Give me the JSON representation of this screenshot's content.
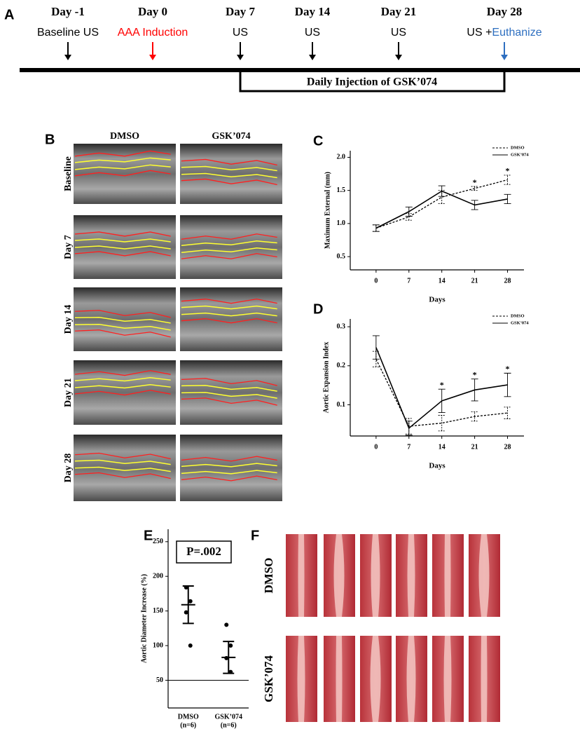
{
  "timeline": {
    "label": "A",
    "events": [
      {
        "day": "Day -1",
        "arrow_color": "#000000",
        "text": [
          {
            "t": "Baseline US",
            "color": "#000000"
          }
        ]
      },
      {
        "day": "Day 0",
        "arrow_color": "#ff0000",
        "text": [
          {
            "t": "AAA Induction",
            "color": "#ff0000"
          }
        ]
      },
      {
        "day": "Day 7",
        "arrow_color": "#000000",
        "text": [
          {
            "t": "US",
            "color": "#000000"
          }
        ]
      },
      {
        "day": "Day 14",
        "arrow_color": "#000000",
        "text": [
          {
            "t": "US",
            "color": "#000000"
          }
        ]
      },
      {
        "day": "Day 21",
        "arrow_color": "#000000",
        "text": [
          {
            "t": "US",
            "color": "#000000"
          }
        ]
      },
      {
        "day": "Day 28",
        "arrow_color": "#2e6fc0",
        "text": [
          {
            "t": "US +",
            "color": "#000000"
          },
          {
            "t": "Euthanize",
            "color": "#2e6fc0"
          }
        ]
      }
    ],
    "bar_label": "Daily Injection of GSK’074"
  },
  "panel_b": {
    "label": "B",
    "columns": [
      "DMSO",
      "GSK’074"
    ],
    "rows": [
      "Baseline",
      "Day 7",
      "Day 14",
      "Day 21",
      "Day 28"
    ]
  },
  "chart_data": [
    {
      "type": "line",
      "label": "C",
      "x_label": "Days",
      "y_label": "Maximum External (mm)",
      "x": [
        0,
        7,
        14,
        21,
        28
      ],
      "xlim": [
        -5.5,
        31.5
      ],
      "xticks": [
        0,
        7,
        14,
        21,
        28
      ],
      "ylim": [
        0.3,
        2.1
      ],
      "yticks": [
        {
          "value": 0.5,
          "label": "0.5"
        },
        {
          "value": 1,
          "label": "1.0"
        },
        {
          "value": 1.5,
          "label": "1.5"
        },
        {
          "value": 2,
          "label": "2.0"
        }
      ],
      "legend": "upper right",
      "series": [
        {
          "name": "DMSO",
          "color": "#000000",
          "dash": true,
          "values": [
            0.93,
            1.1,
            1.4,
            1.53,
            1.66
          ],
          "errors": [
            0.05,
            0.05,
            0.1,
            0.03,
            0.07
          ]
        },
        {
          "name": "GSK’074",
          "color": "#000000",
          "dash": false,
          "values": [
            0.93,
            1.18,
            1.49,
            1.28,
            1.37
          ],
          "errors": [
            0.05,
            0.07,
            0.08,
            0.07,
            0.07
          ]
        }
      ],
      "markers": [
        null,
        null,
        null,
        "*",
        "*"
      ]
    },
    {
      "type": "line",
      "label": "D",
      "x_label": "Days",
      "y_label": "Aortic Expansion Index",
      "x": [
        0,
        7,
        14,
        21,
        28
      ],
      "xlim": [
        -5.5,
        31.5
      ],
      "xticks": [
        0,
        7,
        14,
        21,
        28
      ],
      "ylim": [
        0.02,
        0.32
      ],
      "yticks": [
        0.1,
        0.2,
        0.3
      ],
      "legend": "upper right",
      "series": [
        {
          "name": "DMSO",
          "color": "#000000",
          "dash": true,
          "values": [
            0.217,
            0.045,
            0.053,
            0.07,
            0.079
          ],
          "errors": [
            0.02,
            0.02,
            0.02,
            0.012,
            0.015
          ]
        },
        {
          "name": "GSK’074",
          "color": "#000000",
          "dash": false,
          "values": [
            0.247,
            0.04,
            0.11,
            0.138,
            0.151
          ],
          "errors": [
            0.03,
            0.018,
            0.03,
            0.028,
            0.03
          ]
        }
      ],
      "markers": [
        null,
        null,
        "*",
        "*",
        "*"
      ]
    },
    {
      "type": "dot",
      "label": "E",
      "y_label": "Aortic Diameter Increase (%)",
      "categories": [
        "DMSO",
        "GSK’074"
      ],
      "category_notes": [
        "(n=6)",
        "(n=6)"
      ],
      "points": [
        [
          184,
          164,
          148,
          100
        ],
        [
          130,
          100,
          82,
          62
        ]
      ],
      "means": [
        159,
        83
      ],
      "errors": [
        27,
        23
      ],
      "ylim": [
        10,
        268
      ],
      "yticks": [
        50,
        100,
        150,
        200,
        250
      ],
      "reference_line": 50,
      "annotation": "P=.002"
    }
  ],
  "panel_f": {
    "label": "F",
    "rows": [
      "DMSO",
      "GSK’074"
    ]
  }
}
